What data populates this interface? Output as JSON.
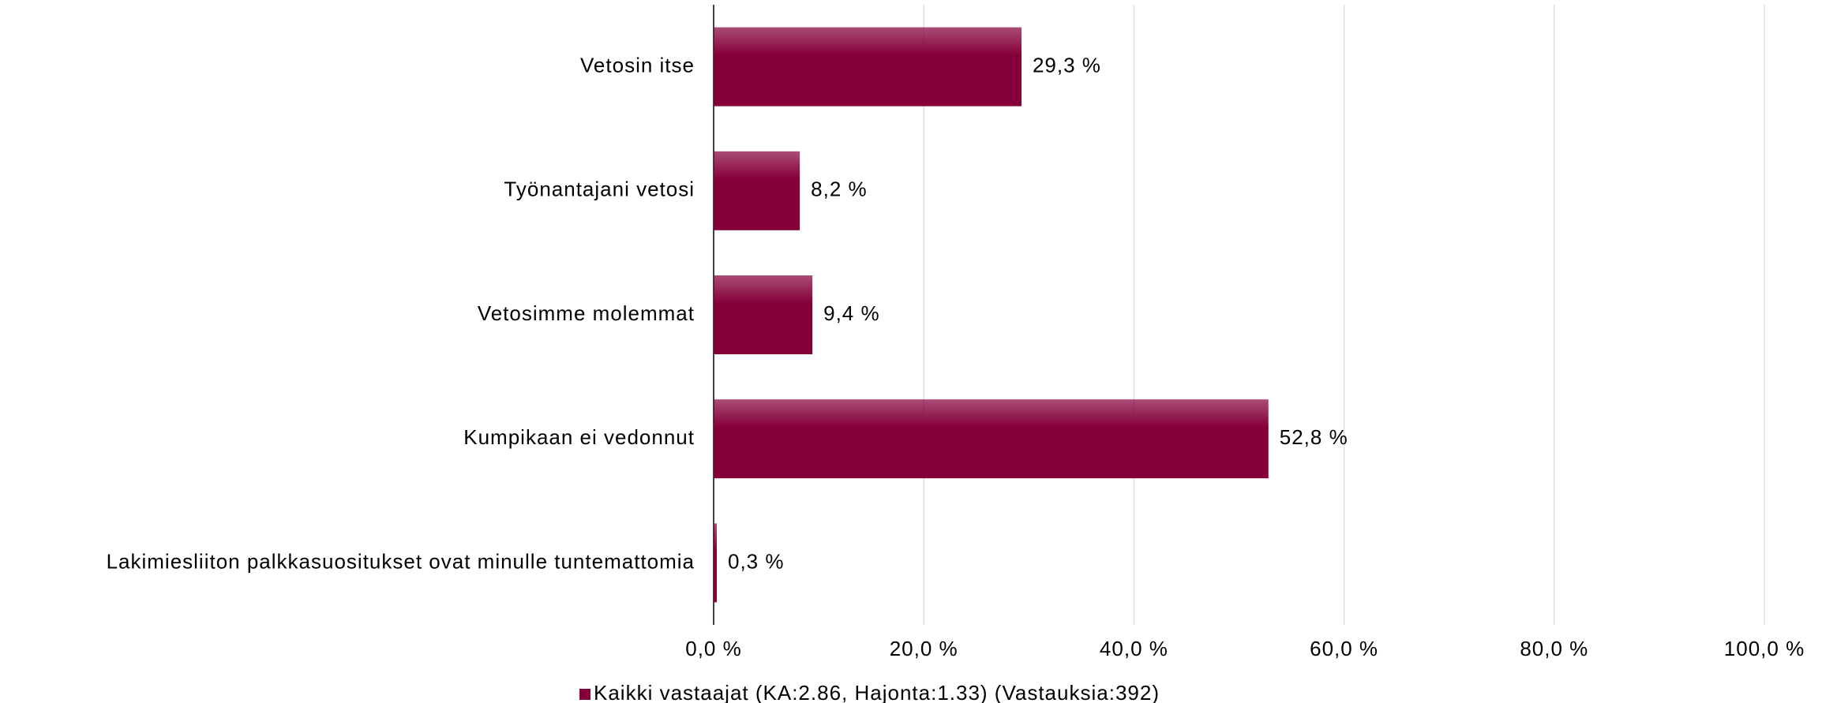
{
  "chart_data": {
    "type": "bar",
    "orientation": "horizontal",
    "categories": [
      "Vetosin itse",
      "Työnantajani vetosi",
      "Vetosimme molemmat",
      "Kumpikaan ei vedonnut",
      "Lakimiesliiton palkkasuositukset ovat minulle tuntemattomia"
    ],
    "series": [
      {
        "name": "Kaikki vastaajat (KA:2.86, Hajonta:1.33) (Vastauksia:392)",
        "color": "#85003a",
        "values": [
          29.3,
          8.2,
          9.4,
          52.8,
          0.3
        ],
        "value_labels": [
          "29,3 %",
          "8,2 %",
          "9,4 %",
          "52,8 %",
          "0,3 %"
        ]
      }
    ],
    "xlim": [
      0,
      100
    ],
    "xticks": [
      {
        "value": 0,
        "label": "0,0 %"
      },
      {
        "value": 20,
        "label": "20,0 %"
      },
      {
        "value": 40,
        "label": "40,0 %"
      },
      {
        "value": 60,
        "label": "60,0 %"
      },
      {
        "value": 80,
        "label": "80,0 %"
      },
      {
        "value": 100,
        "label": "100,0 %"
      }
    ],
    "grid": true,
    "legend": "bottom"
  }
}
